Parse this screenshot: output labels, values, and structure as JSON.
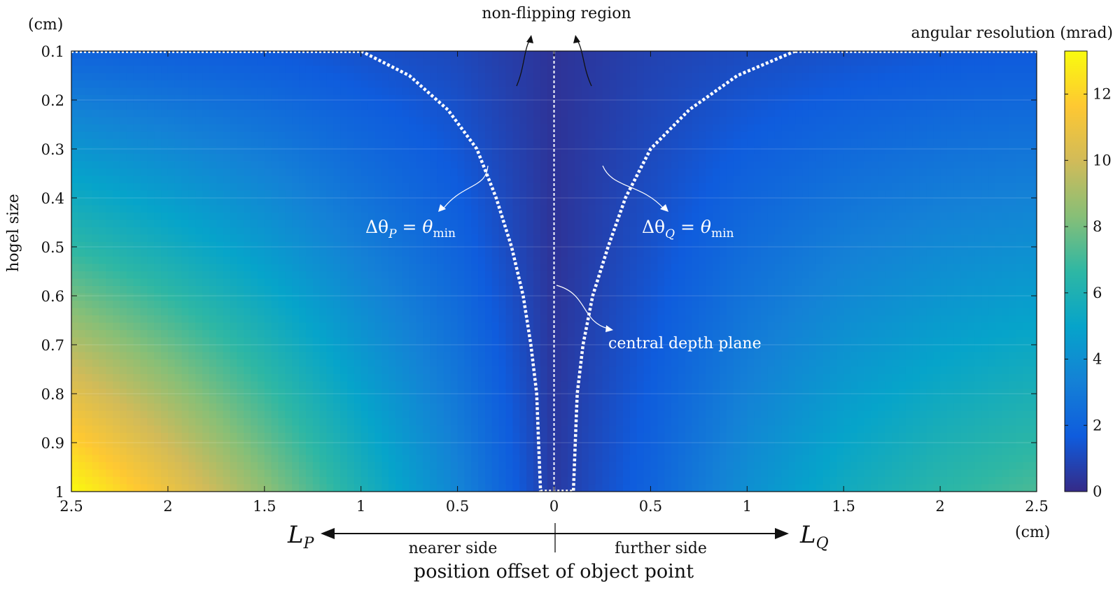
{
  "chart_data": {
    "type": "heatmap",
    "title": "",
    "xlabel": "position offset of object point",
    "x_unit": "(cm)",
    "ylabel": "hogel size",
    "y_unit": "(cm)",
    "x_tick_labels": [
      "2.5",
      "2",
      "1.5",
      "1",
      "0.5",
      "0",
      "0.5",
      "1",
      "1.5",
      "2",
      "2.5"
    ],
    "x_tick_values": [
      -2.5,
      -2,
      -1.5,
      -1,
      -0.5,
      0,
      0.5,
      1,
      1.5,
      2,
      2.5
    ],
    "xlim": [
      -2.5,
      2.5
    ],
    "y_ticks": [
      "0.1",
      "0.2",
      "0.3",
      "0.4",
      "0.5",
      "0.6",
      "0.7",
      "0.8",
      "0.9",
      "1"
    ],
    "y_tick_values": [
      0.1,
      0.2,
      0.3,
      0.4,
      0.5,
      0.6,
      0.7,
      0.8,
      0.9,
      1.0
    ],
    "ylim": [
      0.1,
      1.0
    ],
    "y_reversed": true,
    "colorbar": {
      "label": "angular resolution (mrad)",
      "ticks": [
        "0",
        "2",
        "4",
        "6",
        "8",
        "10",
        "12"
      ],
      "tick_values": [
        0,
        2,
        4,
        6,
        8,
        10,
        12
      ],
      "range": [
        0,
        13.3
      ],
      "colormap": "parula"
    },
    "sample_values": {
      "x": [
        -2.5,
        -2.0,
        -1.5,
        -1.0,
        -0.5,
        0,
        0.5,
        1.0,
        1.5,
        2.0,
        2.5
      ],
      "rows": [
        {
          "hogel": 0.1,
          "mrad": [
            2.0,
            1.8,
            1.6,
            1.3,
            1.0,
            0.3,
            0.8,
            1.1,
            1.3,
            1.5,
            1.6
          ]
        },
        {
          "hogel": 0.5,
          "mrad": [
            6.6,
            5.6,
            4.5,
            3.2,
            2.0,
            0.3,
            1.3,
            2.4,
            3.2,
            3.7,
            4.0
          ]
        },
        {
          "hogel": 1.0,
          "mrad": [
            13.3,
            11.0,
            8.5,
            6.0,
            3.5,
            0.5,
            2.0,
            4.0,
            5.5,
            6.5,
            7.2
          ]
        }
      ]
    },
    "boundary_curves": {
      "name_left": "ΔθP = θmin",
      "name_right": "ΔθQ = θmin",
      "left_points": [
        [
          -1.0,
          0.1
        ],
        [
          -0.75,
          0.15
        ],
        [
          -0.55,
          0.22
        ],
        [
          -0.4,
          0.3
        ],
        [
          -0.3,
          0.4
        ],
        [
          -0.22,
          0.5
        ],
        [
          -0.16,
          0.6
        ],
        [
          -0.12,
          0.7
        ],
        [
          -0.09,
          0.8
        ],
        [
          -0.08,
          0.9
        ],
        [
          -0.07,
          1.0
        ]
      ],
      "right_points": [
        [
          1.25,
          0.1
        ],
        [
          0.95,
          0.15
        ],
        [
          0.7,
          0.22
        ],
        [
          0.5,
          0.3
        ],
        [
          0.37,
          0.4
        ],
        [
          0.28,
          0.5
        ],
        [
          0.2,
          0.6
        ],
        [
          0.15,
          0.7
        ],
        [
          0.12,
          0.8
        ],
        [
          0.11,
          0.9
        ],
        [
          0.1,
          1.0
        ]
      ],
      "top_edge": true
    },
    "annotations": {
      "non_flipping": "non-flipping region",
      "delta_p": {
        "base": "Δθ",
        "sub": "P",
        "rhs": "θ",
        "rhs_sub": "min"
      },
      "delta_q": {
        "base": "Δθ",
        "sub": "Q",
        "rhs": "θ",
        "rhs_sub": "min"
      },
      "central_plane": "central depth plane",
      "lp": {
        "base": "L",
        "sub": "P"
      },
      "lq": {
        "base": "L",
        "sub": "Q"
      },
      "nearer": "nearer side",
      "further": "further side"
    },
    "grid": true
  },
  "colors": {
    "parula": [
      "#352a87",
      "#0f5cdd",
      "#1481d6",
      "#06a4ca",
      "#2eb7a4",
      "#87bf77",
      "#d1bb59",
      "#fec832",
      "#f9fb0e"
    ],
    "boundary": "#ffffff",
    "axis": "#111111"
  }
}
